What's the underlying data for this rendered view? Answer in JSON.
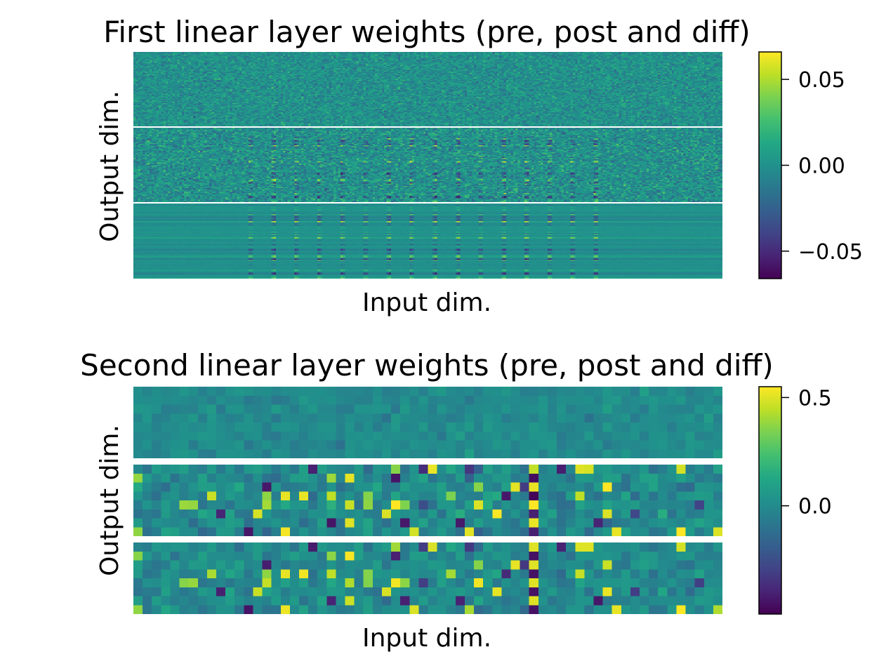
{
  "colormap": "viridis",
  "colormap_stops": [
    "#440154",
    "#482475",
    "#414487",
    "#355f8d",
    "#2a788e",
    "#21918c",
    "#22a884",
    "#44bf70",
    "#7ad151",
    "#bddf26",
    "#fde725"
  ],
  "chart_data": [
    {
      "type": "heatmap",
      "title": "First linear layer weights (pre, post and diff)",
      "xlabel": "Input dim.",
      "ylabel": "Output dim.",
      "panels": [
        "pre",
        "post",
        "diff"
      ],
      "input_columns": 256,
      "output_rows_per_panel": 64,
      "value_range": [
        -0.066,
        0.066
      ],
      "colorbar": {
        "ticks": [
          {
            "value": 0.05,
            "label": "0.05"
          },
          {
            "value": 0.0,
            "label": "0.00"
          },
          {
            "value": -0.05,
            "label": "−0.05"
          }
        ],
        "vmin": -0.066,
        "vmax": 0.066
      }
    },
    {
      "type": "heatmap",
      "title": "Second linear layer weights (pre, post and diff)",
      "xlabel": "Input dim.",
      "ylabel": "Output dim.",
      "panels": [
        "pre",
        "post",
        "diff"
      ],
      "input_columns": 64,
      "output_rows_per_panel": 8,
      "value_range": [
        -0.5,
        0.55
      ],
      "colorbar": {
        "ticks": [
          {
            "value": 0.5,
            "label": "0.5"
          },
          {
            "value": 0.0,
            "label": "0.0"
          }
        ],
        "vmin": -0.5,
        "vmax": 0.55
      }
    }
  ]
}
